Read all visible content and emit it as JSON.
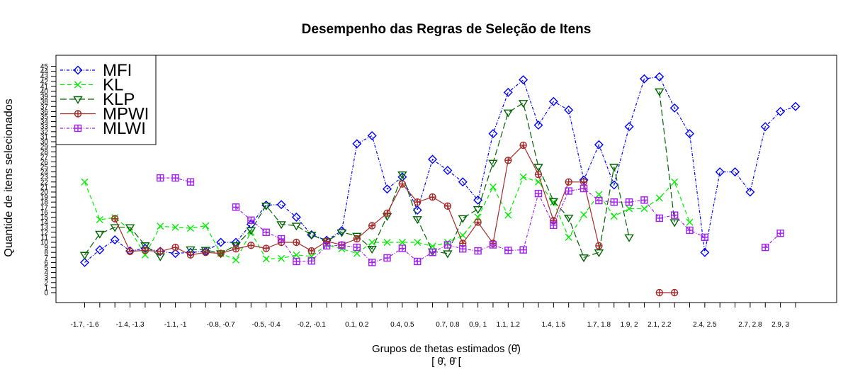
{
  "chart_data": {
    "type": "line",
    "title": "Desempenho das Regras de Seleção de Itens",
    "xlabel": "Grupos de thetas estimados (θ̂)",
    "xlabel_line2": "[ θ̂, θ̂ [",
    "ylabel": "Quantide de itens selecionados",
    "ylim": [
      -2,
      47
    ],
    "yticks": [
      0,
      1,
      2,
      3,
      4,
      5,
      6,
      7,
      8,
      9,
      10,
      11,
      12,
      13,
      14,
      15,
      16,
      17,
      18,
      19,
      20,
      21,
      22,
      23,
      24,
      25,
      26,
      27,
      28,
      29,
      30,
      31,
      32,
      33,
      34,
      35,
      36,
      37,
      38,
      39,
      40,
      41,
      42,
      43,
      44,
      45
    ],
    "x_ticks": [
      "-1.7, -1.6",
      "-1.6, -1.5",
      "-1.5, -1.4",
      "-1.4, -1.3",
      "-1.3, -1.2",
      "-1.2, -1.1",
      "-1.1, -1",
      "-1, -0.9",
      "-0.9, -0.8",
      "-0.8, -0.7",
      "-0.7, -0.6",
      "-0.6, -0.5",
      "-0.5, -0.4",
      "-0.4, -0.3",
      "-0.3, -0.2",
      "-0.2, -0.1",
      "-0.1, 0",
      "0, 0.1",
      "0.1, 0.2",
      "0.2, 0.3",
      "0.3, 0.4",
      "0.4, 0.5",
      "0.5, 0.6",
      "0.6, 0.7",
      "0.7, 0.8",
      "0.8, 0.9",
      "0.9, 1",
      "1, 1.1",
      "1.1, 1.2",
      "1.2, 1.3",
      "1.3, 1.4",
      "1.4, 1.5",
      "1.5, 1.6",
      "1.6, 1.7",
      "1.7, 1.8",
      "1.8, 1.9",
      "1.9, 2",
      "2, 2.1",
      "2.1, 2.2",
      "2.2, 2.3",
      "2.3, 2.4",
      "2.4, 2.5",
      "2.5, 2.6",
      "2.6, 2.7",
      "2.7, 2.8",
      "2.8, 2.9",
      "2.9, 3",
      "3, 3.1"
    ],
    "x_tick_labels_shown": [
      "-1.7, -1.6",
      "",
      "",
      "-1.4, -1.3",
      "",
      "",
      "-1.1, -1",
      "",
      "",
      "-0.8, -0.7",
      "",
      "",
      "-0.5, -0.4",
      "",
      "",
      "-0.2, -0.1",
      "",
      "",
      "0.1, 0.2",
      "",
      "",
      "0.4, 0.5",
      "",
      "",
      "0.7, 0.8",
      "",
      "0.9, 1",
      "",
      "1.1, 1.2",
      "",
      "",
      "1.4, 1.5",
      "",
      "",
      "1.7, 1.8",
      "",
      "1.9, 2",
      "",
      "2.1, 2.2",
      "",
      "",
      "2.4, 2.5",
      "",
      "",
      "2.7, 2.8",
      "",
      "2.9, 3",
      ""
    ],
    "legend_position": "top-left",
    "series": [
      {
        "name": "MFI",
        "color": "#0000ff",
        "dash": "4 2 1 2",
        "marker": "diamond",
        "values": [
          6,
          8.5,
          10.5,
          8.3,
          8.8,
          8.2,
          7.8,
          8,
          8.2,
          10,
          10,
          13.6,
          17.4,
          17.5,
          15,
          11.5,
          10.4,
          12.3,
          29.6,
          31.2,
          20.6,
          23,
          16.4,
          26.5,
          24.3,
          22,
          18.4,
          31.6,
          39.8,
          42.3,
          33.3,
          38,
          36.3,
          22.4,
          29.4,
          21.4,
          33,
          42.5,
          42.9,
          36.7,
          31.6,
          8,
          24,
          24,
          20,
          33,
          36,
          37
        ]
      },
      {
        "name": "KL",
        "color": "#00ee00",
        "dash": "6 4",
        "marker": "x",
        "values": [
          22,
          14.5,
          14.9,
          12.5,
          7.5,
          13.2,
          13,
          12.8,
          13.3,
          7.8,
          6.5,
          12,
          6.7,
          6.8,
          7.5,
          7.2,
          9.5,
          8.7,
          7.8,
          10,
          10,
          10,
          10,
          9.2,
          10,
          11.4,
          15,
          21,
          15.4,
          23,
          22,
          18,
          11,
          15.5,
          19.5,
          15.2,
          16.7,
          16.7,
          18.8,
          22,
          14,
          null,
          null,
          null,
          null,
          null,
          null,
          null
        ]
      },
      {
        "name": "KLP",
        "color": "#006400",
        "dash": "9 4",
        "marker": "triangle-down",
        "values": [
          7.5,
          11.7,
          13,
          13,
          9.4,
          7.2,
          null,
          8.6,
          8.5,
          7.8,
          9.4,
          12.4,
          17.3,
          13.6,
          13.3,
          11.5,
          10.2,
          12,
          11.3,
          8.7,
          15.2,
          23.5,
          14.6,
          8.2,
          7.8,
          14.8,
          16.6,
          25.8,
          35.8,
          37.7,
          25,
          18.2,
          14.9,
          7,
          8,
          25,
          11,
          null,
          40,
          14,
          null,
          null,
          null,
          null,
          null,
          null,
          null,
          null
        ]
      },
      {
        "name": "MPWI",
        "color": "#a52a2a",
        "dash": "none",
        "marker": "circle-plus",
        "values": [
          null,
          null,
          14.7,
          8.2,
          8.4,
          8.2,
          9,
          7.5,
          8,
          7.8,
          8.7,
          9.4,
          8.8,
          10,
          10,
          8.3,
          10.2,
          9.5,
          10.7,
          13.3,
          15.8,
          21.6,
          18,
          19,
          17.2,
          9.8,
          14,
          9.8,
          26.3,
          29.3,
          23.5,
          14.3,
          22,
          22,
          9.3,
          null,
          null,
          null,
          0,
          0,
          null,
          null,
          null,
          null,
          null,
          null,
          null,
          null
        ]
      },
      {
        "name": "MLWI",
        "color": "#a020f0",
        "dash": "4 2 1 2",
        "marker": "square-plus",
        "values": [
          null,
          null,
          null,
          null,
          null,
          22.8,
          22.8,
          22,
          null,
          null,
          17,
          14.4,
          12,
          10.7,
          6.2,
          6.3,
          9.3,
          9.4,
          9,
          6,
          6.9,
          8.8,
          6.2,
          8,
          9.5,
          8.7,
          8.3,
          9.5,
          8.4,
          8.5,
          19.7,
          13.4,
          20.2,
          20.7,
          18.3,
          18,
          18,
          18.4,
          14.8,
          15.4,
          12.4,
          11,
          null,
          null,
          null,
          9,
          11.8,
          null
        ]
      }
    ]
  }
}
